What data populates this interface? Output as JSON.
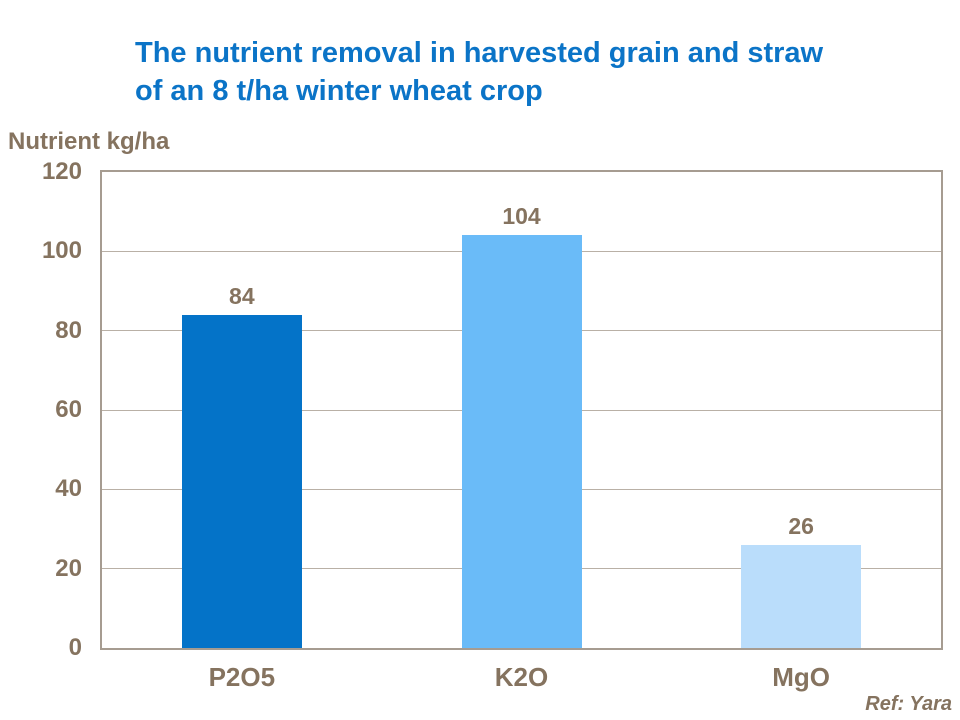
{
  "title": {
    "line1": "The nutrient removal in harvested grain and straw",
    "line2": "of an 8 t/ha winter wheat crop"
  },
  "y_axis_title": "Nutrient kg/ha",
  "ref_text": "Ref: Yara",
  "colors": {
    "title_blue": "#0B74C7",
    "axis_text": "#85735F",
    "gridline": "#B9B0A6",
    "frame": "#A69C91"
  },
  "chart_data": {
    "type": "bar",
    "title": "The nutrient removal in harvested grain and straw of an 8 t/ha winter wheat crop",
    "categories": [
      "P2O5",
      "K2O",
      "MgO"
    ],
    "values": [
      84,
      104,
      26
    ],
    "data_labels": [
      "84",
      "104",
      "26"
    ],
    "bar_colors": [
      "#0473C8",
      "#6ABBF8",
      "#BADDFB"
    ],
    "xlabel": "",
    "ylabel": "Nutrient kg/ha",
    "ylim": [
      0,
      120
    ],
    "yticks": [
      0,
      20,
      40,
      60,
      80,
      100,
      120
    ],
    "grid": "horizontal",
    "legend": "none"
  }
}
